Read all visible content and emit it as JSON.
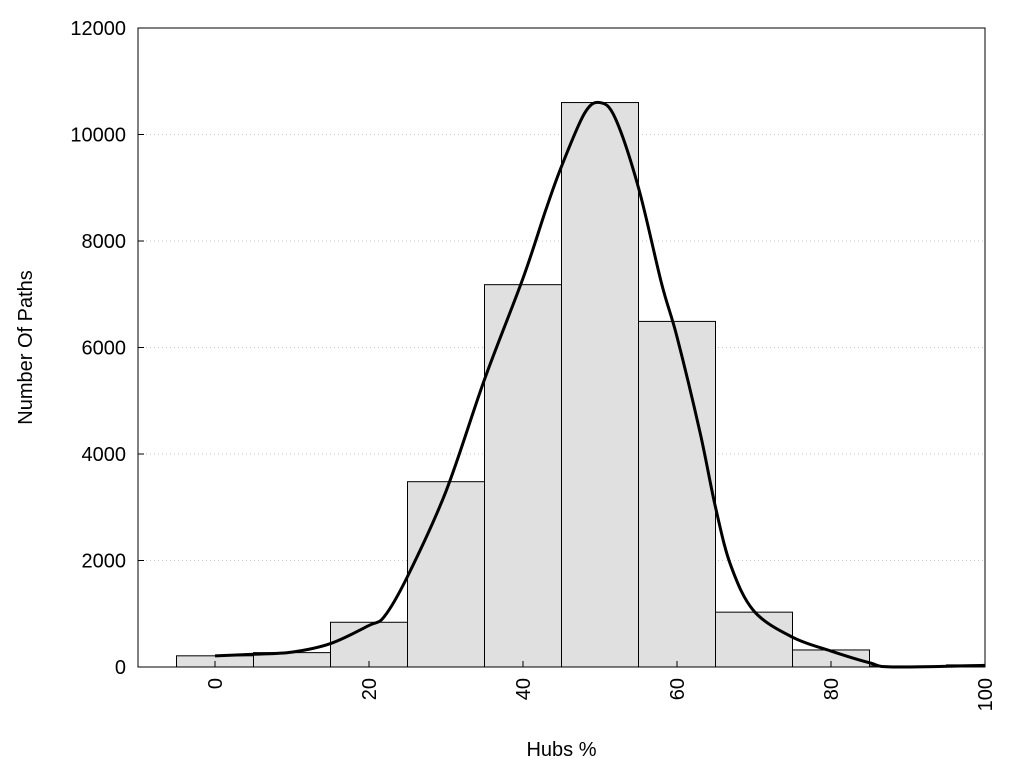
{
  "chart_data": {
    "type": "bar",
    "title": "",
    "xlabel": "Hubs %",
    "ylabel": "Number Of Paths",
    "xlim": [
      -10,
      100
    ],
    "ylim": [
      0,
      12000
    ],
    "x_ticks": [
      0,
      20,
      40,
      60,
      80,
      100
    ],
    "y_ticks": [
      0,
      2000,
      4000,
      6000,
      8000,
      10000,
      12000
    ],
    "x_tick_labels": [
      "0",
      "20",
      "40",
      "60",
      "80",
      "100"
    ],
    "y_tick_labels": [
      "0",
      "2000",
      "4000",
      "6000",
      "8000",
      "10000",
      "12000"
    ],
    "grid": "horizontal dotted",
    "bin_width": 10,
    "bins": [
      {
        "x": 0,
        "value": 210
      },
      {
        "x": 10,
        "value": 270
      },
      {
        "x": 20,
        "value": 840
      },
      {
        "x": 30,
        "value": 3480
      },
      {
        "x": 40,
        "value": 7180
      },
      {
        "x": 50,
        "value": 10600
      },
      {
        "x": 60,
        "value": 6490
      },
      {
        "x": 70,
        "value": 1030
      },
      {
        "x": 80,
        "value": 320
      },
      {
        "x": 90,
        "value": 20
      },
      {
        "x": 100,
        "value": 40
      }
    ],
    "curve": [
      [
        0,
        210
      ],
      [
        5,
        240
      ],
      [
        10,
        280
      ],
      [
        15,
        440
      ],
      [
        20,
        780
      ],
      [
        22,
        950
      ],
      [
        25,
        1700
      ],
      [
        30,
        3300
      ],
      [
        35,
        5400
      ],
      [
        40,
        7300
      ],
      [
        43,
        8600
      ],
      [
        45,
        9400
      ],
      [
        48,
        10400
      ],
      [
        50,
        10600
      ],
      [
        52,
        10300
      ],
      [
        55,
        9000
      ],
      [
        58,
        7200
      ],
      [
        60,
        6200
      ],
      [
        63,
        4400
      ],
      [
        65,
        3000
      ],
      [
        67,
        1900
      ],
      [
        70,
        1050
      ],
      [
        75,
        560
      ],
      [
        80,
        300
      ],
      [
        85,
        80
      ],
      [
        88,
        0
      ],
      [
        100,
        30
      ]
    ],
    "bar_color": "#e0e0e0",
    "curve_color": "#000000"
  }
}
